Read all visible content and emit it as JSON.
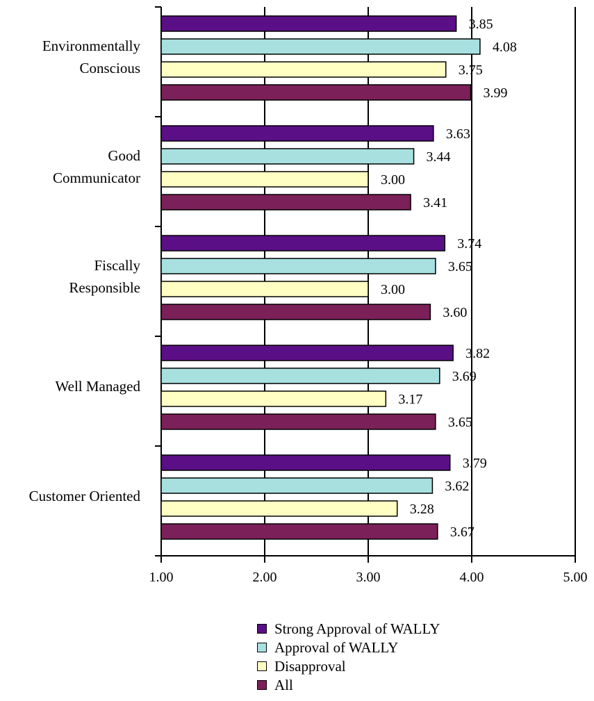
{
  "chart_data": {
    "type": "bar",
    "orientation": "horizontal",
    "categories": [
      [
        "Environmentally",
        "Conscious"
      ],
      [
        "Good",
        "Communicator"
      ],
      [
        "Fiscally",
        "Responsible"
      ],
      [
        "Well Managed"
      ],
      [
        "Customer Oriented"
      ]
    ],
    "series": [
      {
        "name": "Strong Approval of WALLY",
        "color": "#5b0f86",
        "values": [
          3.85,
          3.63,
          3.74,
          3.82,
          3.79
        ]
      },
      {
        "name": "Approval of WALLY",
        "color": "#a8e0e0",
        "values": [
          4.08,
          3.44,
          3.65,
          3.69,
          3.62
        ]
      },
      {
        "name": "Disapproval",
        "color": "#ffffc4",
        "values": [
          3.75,
          3.0,
          3.0,
          3.17,
          3.28
        ]
      },
      {
        "name": "All",
        "color": "#7b2058",
        "values": [
          3.99,
          3.41,
          3.6,
          3.65,
          3.67
        ]
      }
    ],
    "xlim": [
      1.0,
      5.0
    ],
    "xticks": [
      "1.00",
      "2.00",
      "3.00",
      "4.00",
      "5.00"
    ],
    "vertical_gridlines": true,
    "data_labels": true,
    "legend": "bottom-center",
    "title": "",
    "xlabel": "",
    "ylabel": ""
  }
}
